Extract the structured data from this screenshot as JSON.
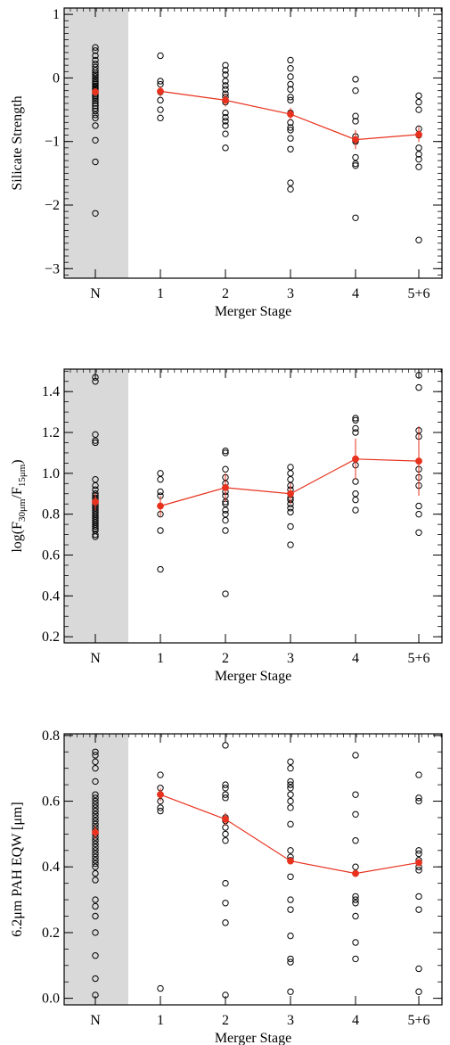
{
  "figure": {
    "colors": {
      "points": "#000000",
      "median": "#e8321e",
      "shade": "#d9d9d9"
    }
  },
  "chart_data": [
    {
      "type": "scatter",
      "ylabel": "Silicate Strength",
      "xlabel": "Merger Stage",
      "categories": [
        "N",
        "1",
        "2",
        "3",
        "4",
        "5+6"
      ],
      "ylim": [
        -3.15,
        1.1
      ],
      "yticks": [
        -3,
        -2,
        -1,
        0,
        1
      ],
      "ytick_labels": [
        "−3",
        "−2",
        "−1",
        "0",
        "1"
      ],
      "shaded_category": "N",
      "points": [
        [
          0.48,
          0.43,
          0.35,
          0.28,
          0.22,
          0.17,
          0.12,
          0.08,
          0.05,
          0.02,
          -0.02,
          -0.05,
          -0.08,
          -0.1,
          -0.13,
          -0.15,
          -0.18,
          -0.2,
          -0.22,
          -0.25,
          -0.28,
          -0.3,
          -0.33,
          -0.36,
          -0.4,
          -0.44,
          -0.48,
          -0.52,
          -0.58,
          -0.63,
          -0.75,
          -0.98,
          -1.32,
          -2.13
        ],
        [
          0.35,
          -0.05,
          -0.1,
          -0.22,
          -0.35,
          -0.5,
          -0.63
        ],
        [
          0.2,
          0.12,
          0.05,
          -0.05,
          -0.12,
          -0.18,
          -0.25,
          -0.3,
          -0.38,
          -0.55,
          -0.62,
          -0.68,
          -0.75,
          -0.88,
          -1.1
        ],
        [
          0.28,
          0.15,
          0.02,
          -0.1,
          -0.18,
          -0.3,
          -0.35,
          -0.55,
          -0.7,
          -0.78,
          -0.82,
          -0.95,
          -1.12,
          -1.65,
          -1.75
        ],
        [
          -0.02,
          -0.2,
          -0.6,
          -0.68,
          -0.92,
          -0.98,
          -1.0,
          -1.25,
          -1.35,
          -1.38,
          -2.2
        ],
        [
          -0.28,
          -0.38,
          -0.5,
          -0.8,
          -0.9,
          -1.1,
          -1.2,
          -1.28,
          -1.4,
          -2.55
        ]
      ],
      "series": [
        {
          "name": "",
          "categories": [
            "N"
          ],
          "values": [
            -0.22
          ],
          "errors": [
            0.06
          ]
        },
        {
          "name": "",
          "categories": [
            "1",
            "2",
            "3",
            "4",
            "5+6"
          ],
          "values": [
            -0.21,
            -0.35,
            -0.57,
            -0.97,
            -0.89
          ],
          "errors": [
            0.08,
            0.1,
            0.1,
            0.15,
            0.12
          ]
        }
      ]
    },
    {
      "type": "scatter",
      "ylabel": "log(F",
      "ylabel_sub1": "30μm",
      "ylabel_mid": "/F",
      "ylabel_sub2": "15μm",
      "ylabel_end": ")",
      "xlabel": "Merger Stage",
      "categories": [
        "N",
        "1",
        "2",
        "3",
        "4",
        "5+6"
      ],
      "ylim": [
        0.17,
        1.51
      ],
      "yticks": [
        0.2,
        0.4,
        0.6,
        0.8,
        1.0,
        1.2,
        1.4
      ],
      "ytick_labels": [
        "0.2",
        "0.4",
        "0.6",
        "0.8",
        "1.0",
        "1.2",
        "1.4"
      ],
      "shaded_category": "N",
      "points": [
        [
          1.47,
          1.45,
          1.19,
          1.16,
          1.15,
          0.97,
          0.94,
          0.92,
          0.9,
          0.89,
          0.88,
          0.87,
          0.86,
          0.85,
          0.84,
          0.83,
          0.82,
          0.81,
          0.8,
          0.79,
          0.78,
          0.77,
          0.76,
          0.75,
          0.74,
          0.73,
          0.72,
          0.7,
          0.69
        ],
        [
          1.0,
          0.97,
          0.91,
          0.89,
          0.8,
          0.72,
          0.53
        ],
        [
          1.11,
          1.1,
          1.02,
          0.98,
          0.95,
          0.93,
          0.91,
          0.89,
          0.86,
          0.85,
          0.82,
          0.8,
          0.77,
          0.72,
          0.41
        ],
        [
          1.03,
          1.0,
          0.97,
          0.94,
          0.92,
          0.9,
          0.88,
          0.87,
          0.85,
          0.83,
          0.81,
          0.74,
          0.65
        ],
        [
          1.27,
          1.26,
          1.22,
          1.2,
          1.07,
          1.04,
          0.96,
          0.9,
          0.87,
          0.82
        ],
        [
          1.48,
          1.42,
          1.21,
          1.18,
          1.06,
          1.02,
          0.98,
          0.94,
          0.84,
          0.8,
          0.71
        ]
      ],
      "series": [
        {
          "name": "",
          "categories": [
            "N"
          ],
          "values": [
            0.86
          ],
          "errors": [
            0.04
          ]
        },
        {
          "name": "",
          "categories": [
            "1",
            "2",
            "3",
            "4",
            "5+6"
          ],
          "values": [
            0.84,
            0.93,
            0.9,
            1.07,
            1.06
          ],
          "errors": [
            0.05,
            0.07,
            0.05,
            0.1,
            0.17
          ]
        }
      ]
    },
    {
      "type": "scatter",
      "ylabel": "6.2μm PAH EQW [μm]",
      "xlabel": "Merger Stage",
      "categories": [
        "N",
        "1",
        "2",
        "3",
        "4",
        "5+6"
      ],
      "ylim": [
        -0.02,
        0.805
      ],
      "yticks": [
        0.0,
        0.2,
        0.4,
        0.6,
        0.8
      ],
      "ytick_labels": [
        "0.0",
        "0.2",
        "0.4",
        "0.6",
        "0.8"
      ],
      "shaded_category": "N",
      "points": [
        [
          0.75,
          0.74,
          0.72,
          0.7,
          0.66,
          0.62,
          0.61,
          0.6,
          0.59,
          0.58,
          0.57,
          0.56,
          0.55,
          0.54,
          0.53,
          0.52,
          0.51,
          0.5,
          0.49,
          0.48,
          0.47,
          0.46,
          0.45,
          0.44,
          0.43,
          0.42,
          0.41,
          0.4,
          0.38,
          0.36,
          0.3,
          0.28,
          0.25,
          0.2,
          0.13,
          0.06,
          0.01
        ],
        [
          0.68,
          0.64,
          0.62,
          0.6,
          0.58,
          0.57,
          0.03
        ],
        [
          0.77,
          0.65,
          0.64,
          0.62,
          0.61,
          0.55,
          0.54,
          0.52,
          0.5,
          0.48,
          0.35,
          0.29,
          0.23,
          0.01
        ],
        [
          0.72,
          0.7,
          0.66,
          0.65,
          0.64,
          0.62,
          0.6,
          0.58,
          0.53,
          0.45,
          0.43,
          0.42,
          0.37,
          0.3,
          0.27,
          0.19,
          0.12,
          0.11,
          0.02
        ],
        [
          0.74,
          0.62,
          0.56,
          0.48,
          0.4,
          0.38,
          0.31,
          0.3,
          0.29,
          0.25,
          0.17,
          0.12
        ],
        [
          0.68,
          0.61,
          0.6,
          0.45,
          0.44,
          0.42,
          0.4,
          0.39,
          0.31,
          0.27,
          0.09,
          0.02
        ]
      ],
      "series": [
        {
          "name": "",
          "categories": [
            "N"
          ],
          "values": [
            0.505
          ],
          "errors": [
            0.02
          ]
        },
        {
          "name": "",
          "categories": [
            "1",
            "2",
            "3",
            "4",
            "5+6"
          ],
          "values": [
            0.62,
            0.545,
            0.418,
            0.38,
            0.413
          ],
          "errors": [
            0.02,
            0.02,
            0.01,
            0.01,
            0.01
          ]
        }
      ]
    }
  ]
}
